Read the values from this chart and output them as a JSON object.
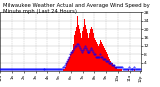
{
  "title": "Milwaukee Weather Actual and Average Wind Speed by Minute mph (Last 24 Hours)",
  "title_fontsize": 3.8,
  "background_color": "#ffffff",
  "bar_color": "#ff0000",
  "avg_color": "#0000ff",
  "ylim": [
    0,
    28
  ],
  "yticks": [
    4,
    8,
    12,
    16,
    20,
    24,
    28
  ],
  "ytick_fontsize": 3.2,
  "xtick_fontsize": 2.8,
  "n_points": 144,
  "grid_color": "#bbbbbb",
  "actual_wind": [
    0,
    0,
    0,
    0,
    0,
    0,
    0,
    0,
    0,
    0,
    0,
    0,
    0,
    0,
    0,
    0,
    0,
    0,
    0,
    0,
    0,
    0,
    0,
    0,
    0,
    0,
    0,
    0,
    0,
    0,
    0,
    0,
    0,
    0,
    0,
    0,
    0,
    0,
    0,
    0,
    0,
    0,
    0,
    0,
    0,
    0,
    0,
    0,
    0,
    0,
    0,
    0,
    0,
    0,
    0,
    0,
    0,
    0,
    0,
    0,
    0,
    0,
    0,
    0,
    1,
    1,
    2,
    3,
    4,
    5,
    6,
    7,
    8,
    9,
    10,
    13,
    17,
    19,
    21,
    26,
    22,
    20,
    18,
    16,
    19,
    21,
    25,
    22,
    20,
    18,
    16,
    18,
    20,
    21,
    20,
    18,
    16,
    15,
    14,
    13,
    12,
    13,
    15,
    14,
    13,
    12,
    11,
    10,
    9,
    8,
    7,
    6,
    5,
    5,
    4,
    4,
    3,
    3,
    2,
    2,
    1,
    1,
    1,
    1,
    1,
    0,
    0,
    0,
    0,
    0,
    0,
    1,
    0,
    0,
    0,
    0,
    0,
    1,
    0,
    0,
    0,
    0,
    0,
    0
  ],
  "avg_wind": [
    1,
    1,
    1,
    1,
    1,
    1,
    1,
    1,
    1,
    1,
    1,
    1,
    1,
    1,
    1,
    1,
    1,
    1,
    1,
    1,
    1,
    1,
    1,
    1,
    1,
    1,
    1,
    1,
    1,
    1,
    1,
    1,
    1,
    1,
    1,
    1,
    1,
    1,
    1,
    1,
    1,
    1,
    1,
    1,
    1,
    1,
    1,
    1,
    1,
    1,
    1,
    1,
    1,
    1,
    1,
    1,
    1,
    1,
    1,
    1,
    1,
    1,
    1,
    1,
    2,
    2,
    3,
    4,
    5,
    6,
    7,
    8,
    9,
    9,
    10,
    11,
    12,
    12,
    13,
    13,
    12,
    11,
    10,
    9,
    10,
    11,
    12,
    11,
    10,
    9,
    9,
    9,
    10,
    11,
    10,
    9,
    8,
    8,
    7,
    7,
    7,
    7,
    8,
    7,
    7,
    6,
    6,
    6,
    5,
    5,
    5,
    4,
    4,
    4,
    3,
    3,
    3,
    2,
    2,
    2,
    2,
    2,
    2,
    2,
    2,
    1,
    1,
    1,
    1,
    1,
    1,
    2,
    1,
    1,
    1,
    1,
    1,
    2,
    1,
    1,
    1,
    1,
    1,
    1
  ],
  "xtick_positions": [
    0,
    12,
    24,
    36,
    48,
    60,
    72,
    84,
    96,
    108,
    120,
    132,
    143
  ],
  "xtick_labels": [
    "12a",
    "1a",
    "2a",
    "3a",
    "4a",
    "5a",
    "6a",
    "7a",
    "8a",
    "9a",
    "10a",
    "11a",
    "12p"
  ],
  "vgrid_positions": [
    12,
    24,
    36,
    48,
    60,
    72,
    84,
    96,
    108,
    120,
    132
  ]
}
